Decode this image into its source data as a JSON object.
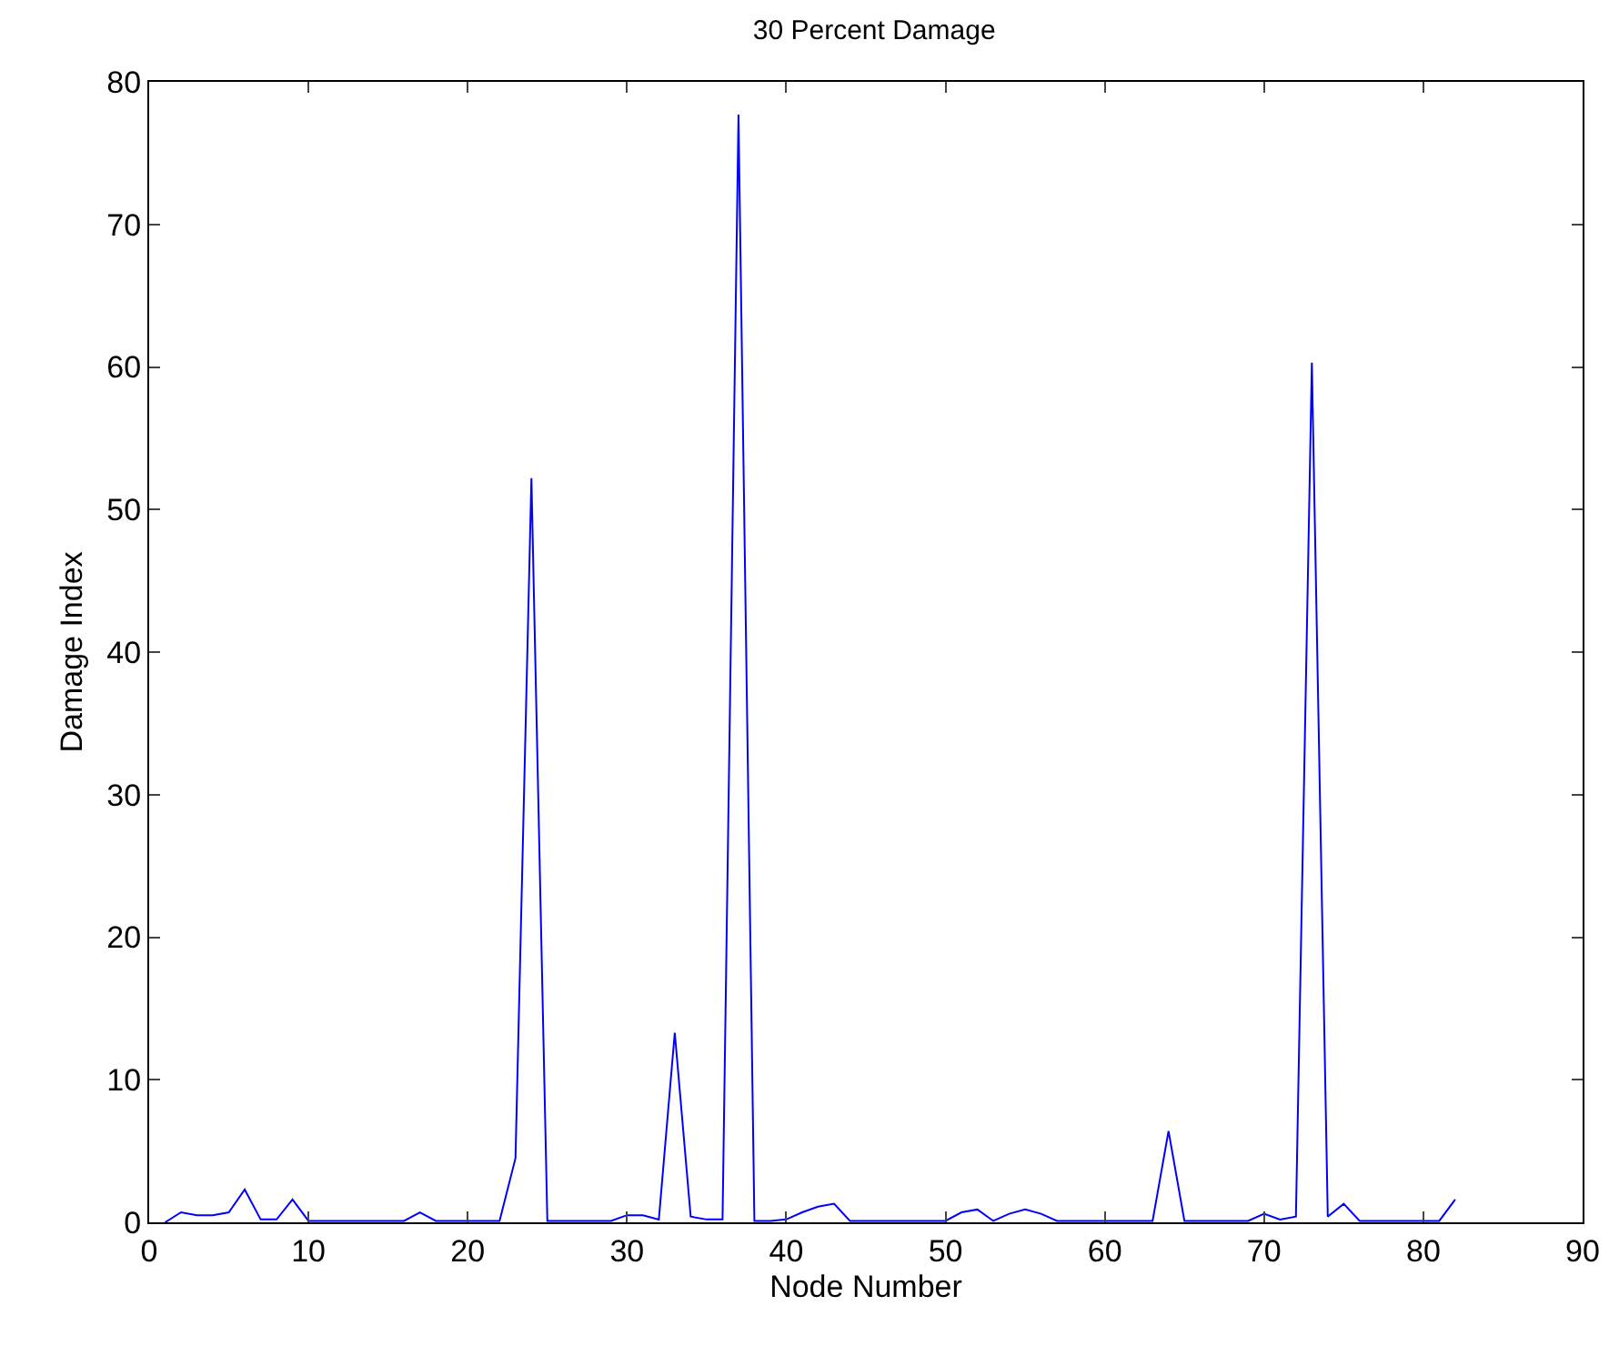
{
  "chart_data": {
    "type": "line",
    "title": "30 Percent Damage",
    "xlabel": "Node Number",
    "ylabel": "Damage Index",
    "x": [
      1,
      2,
      3,
      4,
      5,
      6,
      7,
      8,
      9,
      10,
      11,
      12,
      13,
      14,
      15,
      16,
      17,
      18,
      19,
      20,
      21,
      22,
      23,
      24,
      25,
      26,
      27,
      28,
      29,
      30,
      31,
      32,
      33,
      34,
      35,
      36,
      37,
      38,
      39,
      40,
      41,
      42,
      43,
      44,
      45,
      46,
      47,
      48,
      49,
      50,
      51,
      52,
      53,
      54,
      55,
      56,
      57,
      58,
      59,
      60,
      61,
      62,
      63,
      64,
      65,
      66,
      67,
      68,
      69,
      70,
      71,
      72,
      73,
      74,
      75,
      76,
      77,
      78,
      79,
      80,
      81,
      82
    ],
    "series": [
      {
        "color": "#0000ff",
        "values": [
          0,
          0.7,
          0.5,
          0.5,
          0.7,
          2.3,
          0.2,
          0.2,
          1.6,
          0.1,
          0.1,
          0.1,
          0.1,
          0.1,
          0.1,
          0.1,
          0.7,
          0.1,
          0.1,
          0.1,
          0.1,
          0.1,
          4.5,
          52.2,
          0.1,
          0.1,
          0.1,
          0.1,
          0.1,
          0.5,
          0.5,
          0.2,
          13.3,
          0.4,
          0.2,
          0.2,
          77.7,
          0.1,
          0.1,
          0.2,
          0.7,
          1.1,
          1.3,
          0.1,
          0.1,
          0.1,
          0.1,
          0.1,
          0.1,
          0.1,
          0.7,
          0.9,
          0.1,
          0.6,
          0.9,
          0.6,
          0.1,
          0.1,
          0.1,
          0.1,
          0.1,
          0.1,
          0.1,
          6.4,
          0.1,
          0.1,
          0.1,
          0.1,
          0.1,
          0.6,
          0.2,
          0.4,
          60.3,
          0.4,
          1.3,
          0.1,
          0.1,
          0.1,
          0.1,
          0.1,
          0.1,
          1.6
        ]
      }
    ],
    "xlim": [
      0,
      90
    ],
    "xticks": [
      0,
      10,
      20,
      30,
      40,
      50,
      60,
      70,
      80,
      90
    ],
    "ylim": [
      0,
      80
    ],
    "yticks": [
      0,
      10,
      20,
      30,
      40,
      50,
      60,
      70,
      80
    ],
    "grid": false,
    "marker": "none",
    "line_style": "solid"
  }
}
